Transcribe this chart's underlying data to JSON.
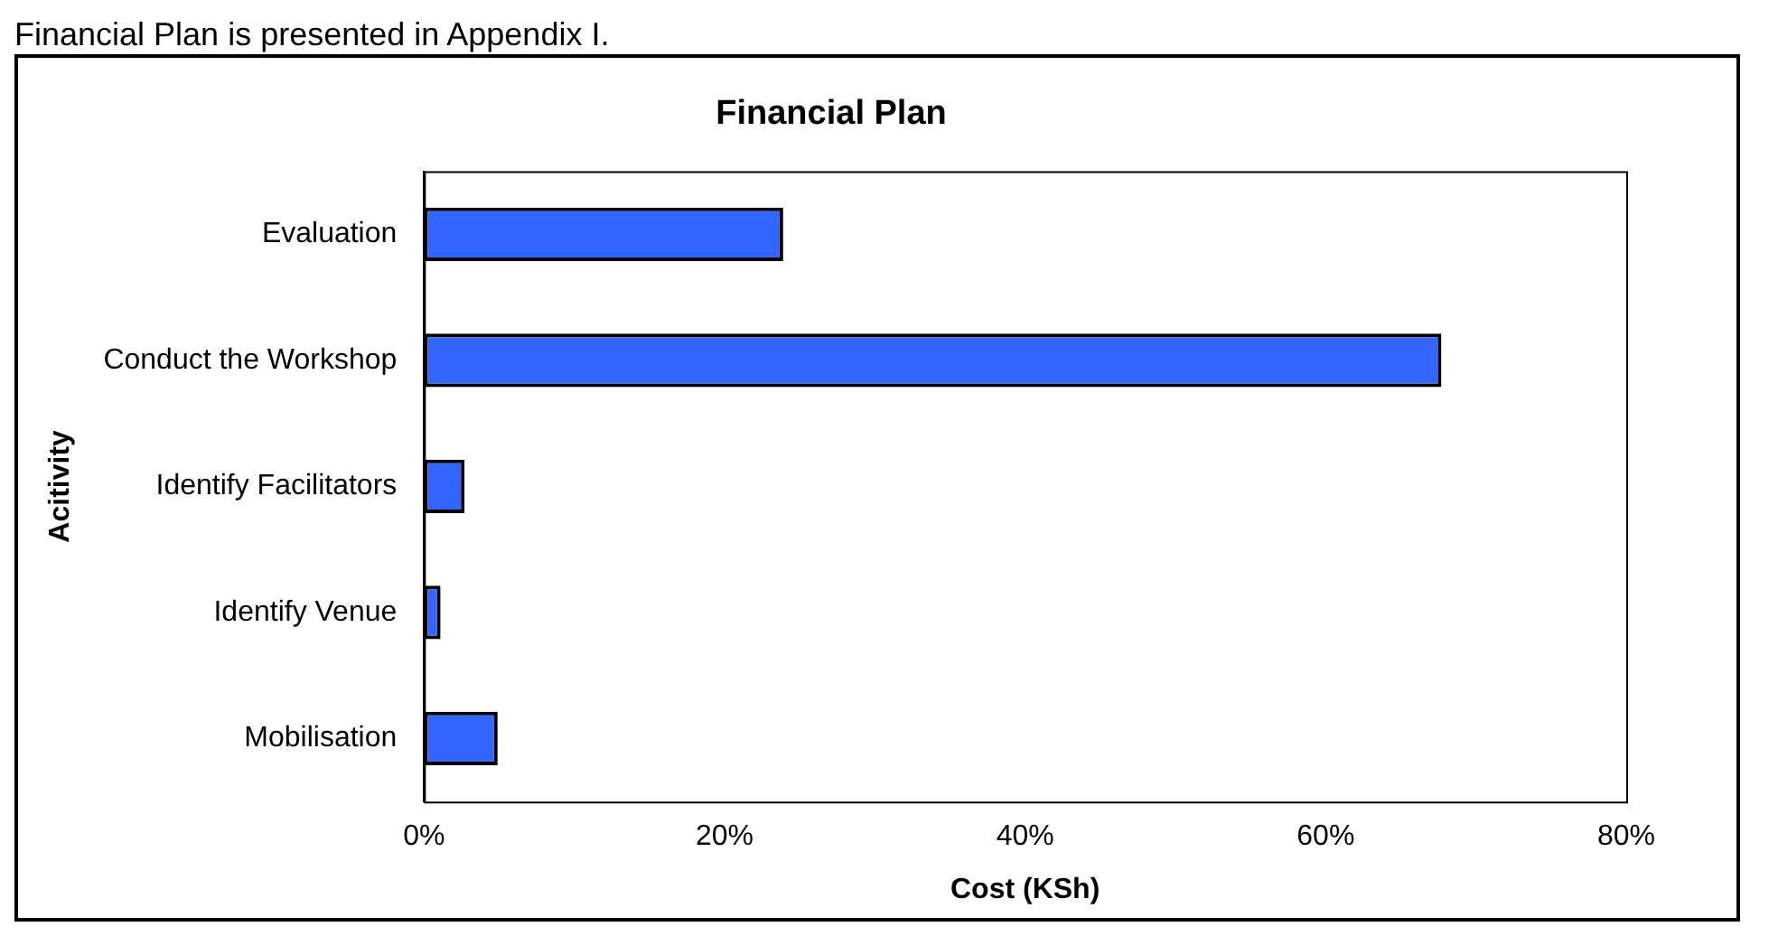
{
  "chart_data": {
    "type": "bar",
    "title": "Financial Plan",
    "orientation": "horizontal",
    "xlabel": "Cost (KSh)",
    "ylabel": "Acitivity",
    "categories": [
      "Evaluation",
      "Conduct the Workshop",
      "Identify Facilitators",
      "Identify Venue",
      "Mobilisation"
    ],
    "values": [
      23.9,
      67.7,
      2.7,
      1.1,
      4.9
    ],
    "color": "#3366ff",
    "xlim": [
      0,
      80
    ],
    "xticks": [
      {
        "value": 0,
        "label": "0%"
      },
      {
        "value": 20,
        "label": "20%"
      },
      {
        "value": 40,
        "label": "40%"
      },
      {
        "value": 60,
        "label": "60%"
      },
      {
        "value": 80,
        "label": "80%"
      }
    ],
    "grid": false,
    "legend": false,
    "annotations": [
      "Financial Plan is presented in Appendix I."
    ]
  }
}
